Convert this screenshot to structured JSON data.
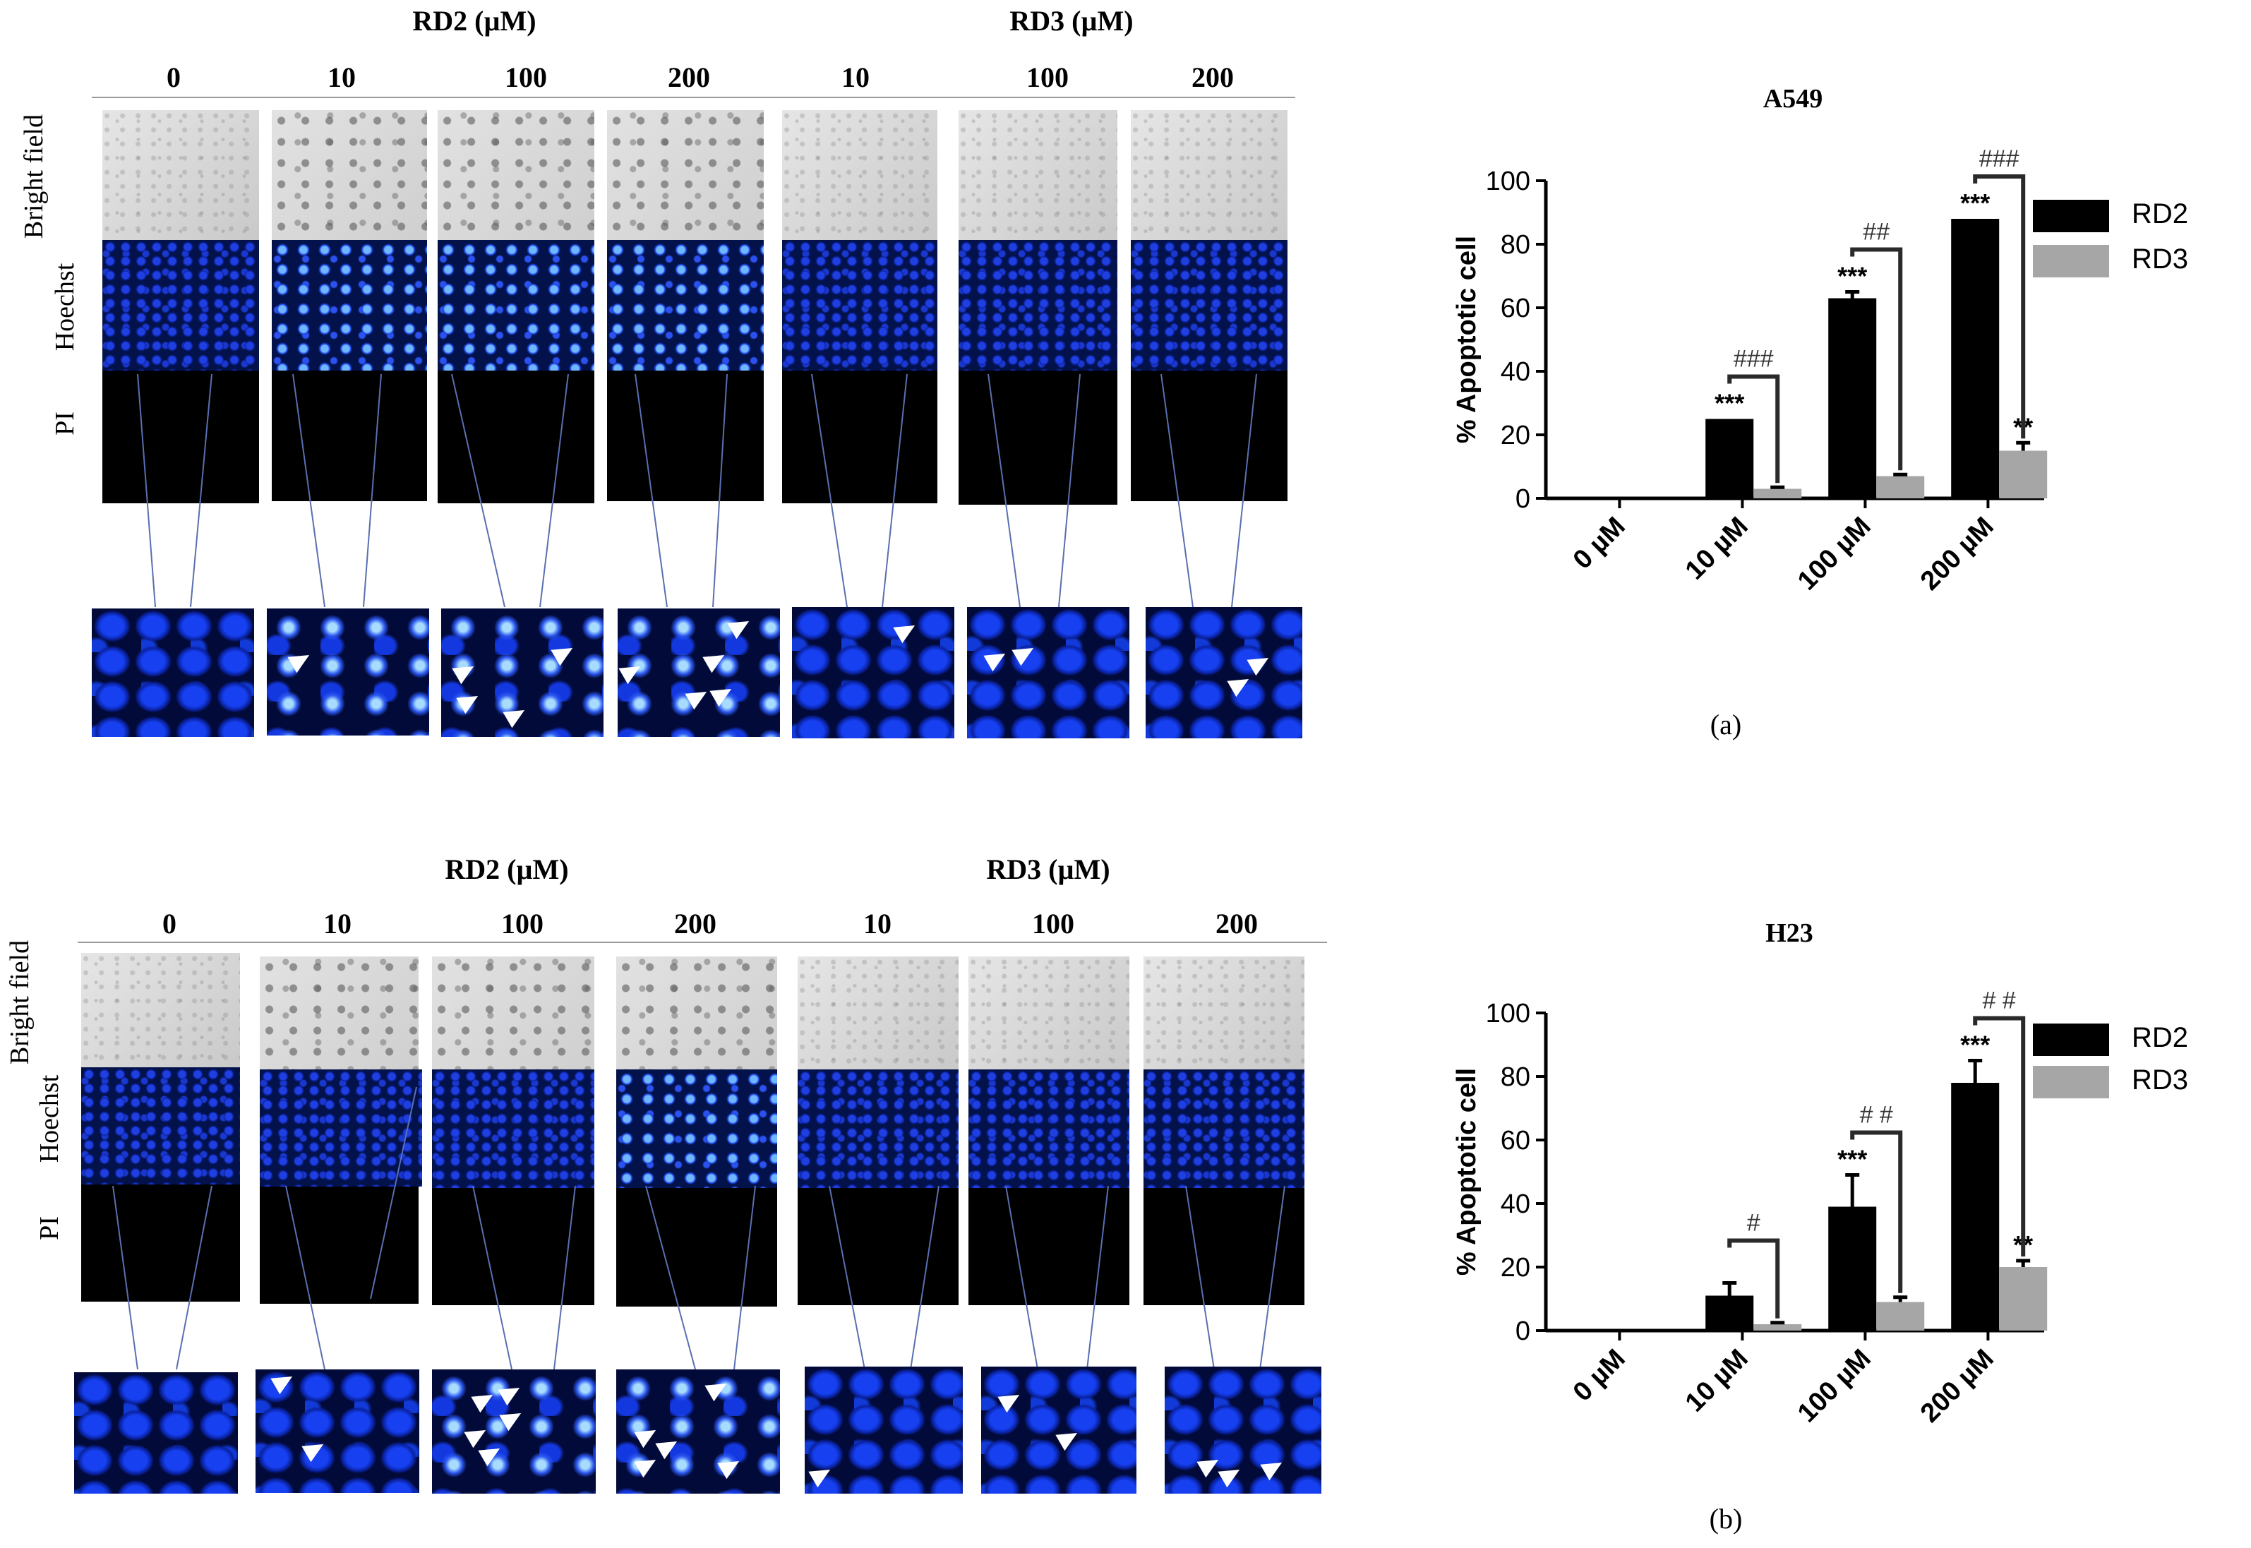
{
  "figure": {
    "panels": [
      {
        "id": "a",
        "panel_label": "(a)",
        "micrographs": {
          "group_labels": [
            "RD2 (µM)",
            "RD3 (µM)"
          ],
          "concentrations": [
            "0",
            "10",
            "100",
            "200",
            "10",
            "100",
            "200"
          ],
          "row_labels": {
            "brightfield": "Bright field",
            "hoechst": "Hoechst",
            "pi": "PI"
          }
        }
      },
      {
        "id": "b",
        "panel_label": "(b)",
        "micrographs": {
          "group_labels": [
            "RD2 (µM)",
            "RD3 (µM)"
          ],
          "concentrations": [
            "0",
            "10",
            "100",
            "200",
            "10",
            "100",
            "200"
          ],
          "row_labels": {
            "brightfield": "Bright field",
            "hoechst": "Hoechst",
            "pi": "PI"
          }
        }
      }
    ]
  },
  "colors": {
    "RD2": "#000000",
    "RD3": "#a6a6a6",
    "hoechst_blue": "#1f3fe0"
  },
  "chart_data": [
    {
      "type": "bar",
      "title": "A549",
      "ylabel": "% Apoptotic cell",
      "xlabel": "",
      "categories": [
        "0 µM",
        "10 µM",
        "100 µM",
        "200 µM"
      ],
      "ylim": [
        0,
        100
      ],
      "yticks": [
        "0",
        "20",
        "40",
        "60",
        "80",
        "100"
      ],
      "legend_position": "right",
      "series": [
        {
          "name": "RD2",
          "values": [
            0,
            25,
            63,
            88
          ],
          "errors": [
            0,
            0,
            2,
            0
          ],
          "marks": [
            "",
            "***",
            "***",
            "***"
          ]
        },
        {
          "name": "RD3",
          "values": [
            0,
            3,
            7,
            15
          ],
          "errors": [
            0,
            0.5,
            0.5,
            2.5
          ],
          "marks": [
            "",
            "",
            "",
            "**"
          ]
        }
      ],
      "brackets": [
        "",
        "###",
        "##",
        "###"
      ]
    },
    {
      "type": "bar",
      "title": "H23",
      "ylabel": "% Apoptotic cell",
      "xlabel": "",
      "categories": [
        "0 µM",
        "10 µM",
        "100 µM",
        "200 µM"
      ],
      "ylim": [
        0,
        100
      ],
      "yticks": [
        "0",
        "20",
        "40",
        "60",
        "80",
        "100"
      ],
      "legend_position": "right",
      "series": [
        {
          "name": "RD2",
          "values": [
            0,
            11,
            39,
            78
          ],
          "errors": [
            0,
            4,
            10,
            7
          ],
          "marks": [
            "",
            "",
            "***",
            "***"
          ]
        },
        {
          "name": "RD3",
          "values": [
            0,
            2,
            9,
            20
          ],
          "errors": [
            0,
            0.5,
            1.5,
            2
          ],
          "marks": [
            "",
            "",
            "",
            "**"
          ]
        }
      ],
      "brackets": [
        "",
        "#",
        "# #",
        "# #"
      ]
    }
  ]
}
